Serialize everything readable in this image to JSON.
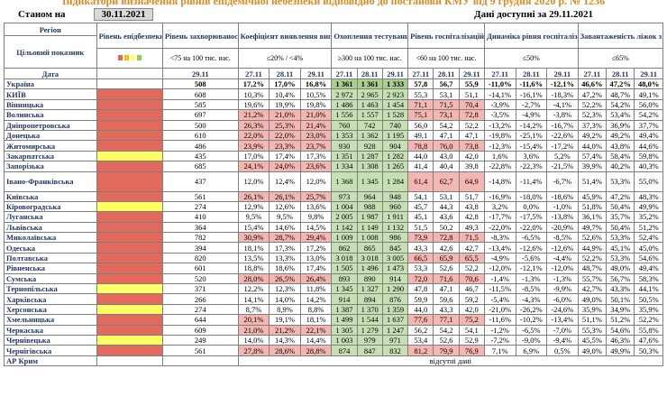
{
  "header": {
    "title": "Індикатори визначення рівнів епідемічної небезпеки відповідно до постанови КМУ від 9 грудня 2020 р. № 1236",
    "status_label": "Станом на",
    "status_date": "30.11.2021",
    "available_label": "Дані доступні за 29.11.2021"
  },
  "columns": {
    "region": "Регіон",
    "target": "Цільовий показник",
    "date": "Дата",
    "level": "Рівень епідбезпеки",
    "incidence": "Рівень захворюваності",
    "incidence_target": "<75 на 100 тис. нас.",
    "detection": "Коефіцієнт виявлення випадків інфікування",
    "detection_target": "≤20% / <4%",
    "testing": "Охоплення тестуванням",
    "testing_target": "≥300 на 100 тис. нас.",
    "hosp": "Рівень госпіталізацій",
    "hosp_target": "<60 на 100 тис. нас.",
    "dyn": "Динаміка рівня госпіталізацій",
    "dyn_target": "≤50%",
    "oxy": "Завантаженість ліжок з киснем",
    "oxy_target": "≤65%",
    "d_29": "29.11",
    "d_27": "27.11",
    "d_28": "28.11"
  },
  "legend_colors": [
    "#e26a5c",
    "#ffc000",
    "#ffff66",
    "#92d050"
  ],
  "rows": [
    {
      "region": "Україна",
      "level": "",
      "inc": "508",
      "det": [
        "17,2%",
        "17,0%",
        "16,8%"
      ],
      "test": [
        "1 361",
        "1 361",
        "1 333"
      ],
      "hosp": [
        "57,8",
        "56,7",
        "55,9"
      ],
      "dyn": [
        "-11,0%",
        "-11,6%",
        "-12,1%"
      ],
      "oxy": [
        "46,6%",
        "47,2%",
        "48,0%"
      ],
      "total": true
    },
    {
      "region": "КИЇВ",
      "level": "red",
      "inc": "608",
      "det": [
        "10,3%",
        "10,4%",
        "10,5%"
      ],
      "test": [
        "2 972",
        "2 965",
        "2 923"
      ],
      "hosp": [
        "55,3",
        "53,1",
        "51,1"
      ],
      "dyn": [
        "-14,1%",
        "-16,1%",
        "-18,3%"
      ],
      "oxy": [
        "47,2%",
        "48,7%",
        "49,1%"
      ]
    },
    {
      "region": "Вінницька",
      "level": "red",
      "inc": "585",
      "det": [
        "19,6%",
        "19,9%",
        "19,8%"
      ],
      "test": [
        "1 486",
        "1 463",
        "1 454"
      ],
      "hosp": [
        "71,1",
        "71,5",
        "70,4"
      ],
      "dyn": [
        "-3,9%",
        "-2,7%",
        "-4,1%"
      ],
      "oxy": [
        "52,2%",
        "54,2%",
        "56,0%"
      ]
    },
    {
      "region": "Волинська",
      "level": "red",
      "inc": "697",
      "det": [
        "21,2%",
        "21,0%",
        "21,0%"
      ],
      "test": [
        "1 556",
        "1 557",
        "1 528"
      ],
      "hosp": [
        "75,1",
        "73,1",
        "72,8"
      ],
      "dyn": [
        "-3,5%",
        "-4,9%",
        "-3,8%"
      ],
      "oxy": [
        "52,3%",
        "53,4%",
        "54,2%"
      ]
    },
    {
      "region": "Дніпропетровська",
      "level": "red",
      "inc": "500",
      "det": [
        "26,3%",
        "25,3%",
        "21,4%"
      ],
      "test": [
        "760",
        "742",
        "740"
      ],
      "hosp": [
        "56,0",
        "54,2",
        "52,2"
      ],
      "dyn": [
        "-13,2%",
        "-14,2%",
        "-16,7%"
      ],
      "oxy": [
        "37,3%",
        "36,9%",
        "37,7%"
      ]
    },
    {
      "region": "Донецька",
      "level": "red",
      "inc": "610",
      "det": [
        "22,0%",
        "22,0%",
        "23,0%"
      ],
      "test": [
        "1 353",
        "1 362",
        "1 195"
      ],
      "hosp": [
        "49,1",
        "47,1",
        "47,1"
      ],
      "dyn": [
        "-19,8%",
        "-25,1%",
        "-22,6%"
      ],
      "oxy": [
        "49,2%",
        "49,2%",
        "49,4%"
      ]
    },
    {
      "region": "Житомирська",
      "level": "red",
      "inc": "486",
      "det": [
        "23,9%",
        "23,3%",
        "23,7%"
      ],
      "test": [
        "930",
        "928",
        "904"
      ],
      "hosp": [
        "78,8",
        "76,0",
        "73,8"
      ],
      "dyn": [
        "-12,3%",
        "-15,4%",
        "-17,2%"
      ],
      "oxy": [
        "44,0%",
        "43,8%",
        "44,6%"
      ]
    },
    {
      "region": "Закарпатська",
      "level": "yellow",
      "inc": "435",
      "det": [
        "17,0%",
        "17,4%",
        "17,3%"
      ],
      "test": [
        "1 351",
        "1 287",
        "1 282"
      ],
      "hosp": [
        "44,0",
        "43,0",
        "42,0"
      ],
      "dyn": [
        "1,6%",
        "3,6%",
        "5,2%"
      ],
      "oxy": [
        "57,4%",
        "58,4%",
        "59,8%"
      ]
    },
    {
      "region": "Запорізька",
      "level": "red",
      "inc": "685",
      "det": [
        "24,1%",
        "24,0%",
        "23,6%"
      ],
      "test": [
        "1 334",
        "1 308",
        "1 265"
      ],
      "hosp": [
        "41,4",
        "40,4",
        "39,8"
      ],
      "dyn": [
        "-22,8%",
        "-22,3%",
        "-21,5%"
      ],
      "oxy": [
        "39,9%",
        "40,2%",
        "40,3%"
      ]
    },
    {
      "region": "Івано-Франківська",
      "level": "red",
      "inc": "437",
      "det": [
        "12,0%",
        "12,4%",
        "12,0%"
      ],
      "test": [
        "1 368",
        "1 345",
        "1 284"
      ],
      "hosp": [
        "61,4",
        "62,7",
        "64,9"
      ],
      "dyn": [
        "-14,8%",
        "-11,4%",
        "-6,7%"
      ],
      "oxy": [
        "51,4%",
        "53,3%",
        "55,0%"
      ],
      "tall": true
    },
    {
      "region": "Київська",
      "level": "red",
      "inc": "561",
      "det": [
        "26,1%",
        "26,1%",
        "25,7%"
      ],
      "test": [
        "973",
        "964",
        "948"
      ],
      "hosp": [
        "54,1",
        "53,1",
        "51,7"
      ],
      "dyn": [
        "-16,9%",
        "-18,0%",
        "-18,6%"
      ],
      "oxy": [
        "45,9%",
        "47,2%",
        "48,3%"
      ]
    },
    {
      "region": "Кіровоградська",
      "level": "yellow",
      "inc": "274",
      "det": [
        "12,9%",
        "12,6%",
        "13,6%"
      ],
      "test": [
        "1 004",
        "988",
        "960"
      ],
      "hosp": [
        "45,7",
        "44,3",
        "43,8"
      ],
      "dyn": [
        "3,2%",
        "0,0%",
        "-1,0%"
      ],
      "oxy": [
        "51,8%",
        "50,4%",
        "49,9%"
      ]
    },
    {
      "region": "Луганська",
      "level": "red",
      "inc": "410",
      "det": [
        "9,5%",
        "9,5%",
        "9,8%"
      ],
      "test": [
        "2 005",
        "1 987",
        "1 911"
      ],
      "hosp": [
        "45,1",
        "43,6",
        "42,8"
      ],
      "dyn": [
        "-17,7%",
        "-17,5%",
        "-13,8%"
      ],
      "oxy": [
        "36,1%",
        "35,7%",
        "35,2%"
      ]
    },
    {
      "region": "Львівська",
      "level": "red",
      "inc": "364",
      "det": [
        "15,4%",
        "14,6%",
        "14,5%"
      ],
      "test": [
        "1 142",
        "1 149",
        "1 132"
      ],
      "hosp": [
        "51,5",
        "50,2",
        "49,3"
      ],
      "dyn": [
        "-22,0%",
        "-22,0%",
        "-20,9%"
      ],
      "oxy": [
        "49,7%",
        "50,4%",
        "51,2%"
      ]
    },
    {
      "region": "Миколаївська",
      "level": "red",
      "inc": "782",
      "det": [
        "30,9%",
        "28,7%",
        "29,4%"
      ],
      "test": [
        "1 009",
        "1 008",
        "986"
      ],
      "hosp": [
        "73,9",
        "72,8",
        "71,5"
      ],
      "dyn": [
        "-8,3%",
        "-6,5%",
        "-8,5%"
      ],
      "oxy": [
        "52,6%",
        "53,3%",
        "52,4%"
      ]
    },
    {
      "region": "Одеська",
      "level": "red",
      "inc": "394",
      "det": [
        "18,1%",
        "17,3%",
        "17,2%"
      ],
      "test": [
        "862",
        "865",
        "845"
      ],
      "hosp": [
        "43,3",
        "42,6",
        "42,7"
      ],
      "dyn": [
        "-13,4%",
        "-12,6%",
        "-12,6%"
      ],
      "oxy": [
        "44,9%",
        "45,1%",
        "45,0%"
      ]
    },
    {
      "region": "Полтавська",
      "level": "red",
      "inc": "820",
      "det": [
        "13,5%",
        "13,3%",
        "13,0%"
      ],
      "test": [
        "3 018",
        "3 018",
        "3 005"
      ],
      "hosp": [
        "66,5",
        "65,9",
        "65,5"
      ],
      "dyn": [
        "-4,9%",
        "-5,6%",
        "-4,4%"
      ],
      "oxy": [
        "52,2%",
        "53,3%",
        "54,6%"
      ]
    },
    {
      "region": "Рівненська",
      "level": "red",
      "inc": "601",
      "det": [
        "18,8%",
        "18,6%",
        "17,4%"
      ],
      "test": [
        "1 505",
        "1 496",
        "1 473"
      ],
      "hosp": [
        "53,3",
        "52,6",
        "52,2"
      ],
      "dyn": [
        "-12,0%",
        "-12,1%",
        "-12,0%"
      ],
      "oxy": [
        "48,7%",
        "49,0%",
        "49,4%"
      ]
    },
    {
      "region": "Сумська",
      "level": "red",
      "inc": "520",
      "det": [
        "28,0%",
        "26,5%",
        "26,4%"
      ],
      "test": [
        "893",
        "890",
        "914"
      ],
      "hosp": [
        "72,0",
        "71,6",
        "70,6"
      ],
      "dyn": [
        "-1,4%",
        "-1,3%",
        "-1,3%"
      ],
      "oxy": [
        "55,7%",
        "56,7%",
        "58,3%"
      ]
    },
    {
      "region": "Тернопільська",
      "level": "yellow",
      "inc": "371",
      "det": [
        "12,2%",
        "12,3%",
        "11,8%"
      ],
      "test": [
        "1 345",
        "1 327",
        "1 290"
      ],
      "hosp": [
        "47,8",
        "47,1",
        "46,7"
      ],
      "dyn": [
        "-11,5%",
        "-8,5%",
        "-9,9%"
      ],
      "oxy": [
        "42,7%",
        "43,3%",
        "44,1%"
      ]
    },
    {
      "region": "Харківська",
      "level": "red",
      "inc": "266",
      "det": [
        "14,1%",
        "14,0%",
        "14,2%"
      ],
      "test": [
        "914",
        "894",
        "876"
      ],
      "hosp": [
        "59,9",
        "59,6",
        "59,2"
      ],
      "dyn": [
        "-5,4%",
        "-4,3%",
        "-6,0%"
      ],
      "oxy": [
        "49,0%",
        "50,1%",
        "50,5%"
      ]
    },
    {
      "region": "Херсонська",
      "level": "yellow",
      "inc": "274",
      "det": [
        "8,7%",
        "8,9%",
        "8,8%"
      ],
      "test": [
        "1 387",
        "1 370",
        "1 359"
      ],
      "hosp": [
        "44,0",
        "43,3",
        "42,0"
      ],
      "dyn": [
        "-21,0%",
        "-26,2%",
        "-24,6%"
      ],
      "oxy": [
        "35,9%",
        "34,9%",
        "35,9%"
      ]
    },
    {
      "region": "Хмельницька",
      "level": "red",
      "inc": "644",
      "det": [
        "20,1%",
        "19,1%",
        "18,1%"
      ],
      "test": [
        "1 499",
        "1 544",
        "1 637"
      ],
      "hosp": [
        "77,6",
        "77,1",
        "75,2"
      ],
      "dyn": [
        "-11,6%",
        "-10,2%",
        "-13,4%"
      ],
      "oxy": [
        "51,1%",
        "51,2%",
        "52,2%"
      ]
    },
    {
      "region": "Черкаська",
      "level": "red",
      "inc": "609",
      "det": [
        "21,0%",
        "21,2%",
        "22,1%"
      ],
      "test": [
        "1 305",
        "1 279",
        "1 247"
      ],
      "hosp": [
        "56,2",
        "54,2",
        "54,1"
      ],
      "dyn": [
        "-1,2%",
        "-6,5%",
        "-7,0%"
      ],
      "oxy": [
        "55,3%",
        "54,6%",
        "55,8%"
      ]
    },
    {
      "region": "Чернівецька",
      "level": "yellow",
      "inc": "249",
      "det": [
        "14,0%",
        "14,3%",
        "14,4%"
      ],
      "test": [
        "1 003",
        "979",
        "971"
      ],
      "hosp": [
        "53,4",
        "52,6",
        "52,9"
      ],
      "dyn": [
        "-7,2%",
        "-9,0%",
        "-9,4%"
      ],
      "oxy": [
        "45,5%",
        "46,3%",
        "47,6%"
      ]
    },
    {
      "region": "Чернігівська",
      "level": "red",
      "inc": "561",
      "det": [
        "27,8%",
        "28,6%",
        "28,8%"
      ],
      "test": [
        "874",
        "847",
        "832"
      ],
      "hosp": [
        "81,2",
        "79,9",
        "76,9"
      ],
      "dyn": [
        "7,1%",
        "6,9%",
        "0,5%"
      ],
      "oxy": [
        "49,0%",
        "49,9%",
        "50,3%"
      ]
    },
    {
      "region": "АР Крим",
      "level": "",
      "inc": "",
      "missing": "відсутні дані"
    }
  ]
}
